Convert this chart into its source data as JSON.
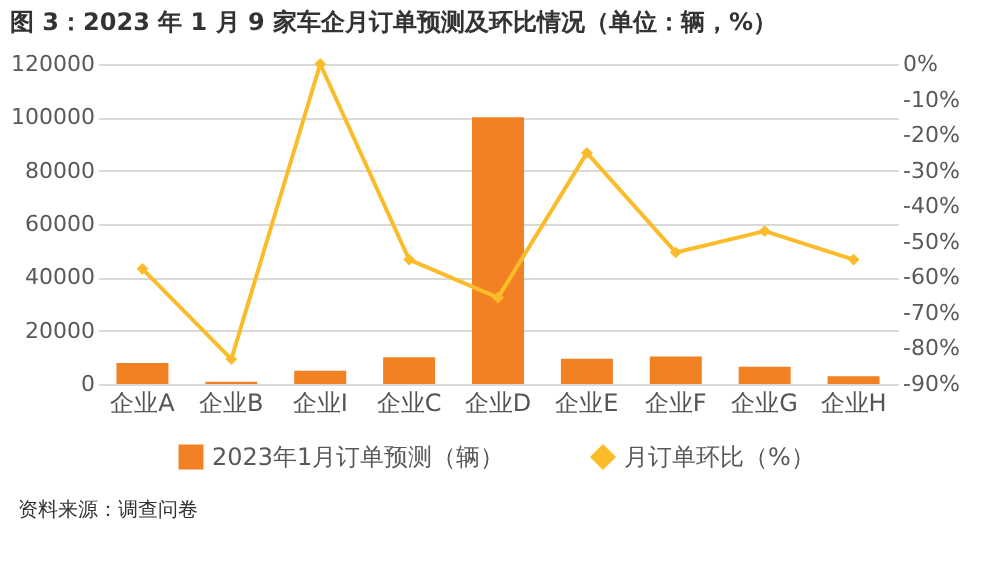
{
  "chart_data": {
    "type": "bar",
    "title": "图 3：2023 年 1 月 9 家车企月订单预测及环比情况（单位：辆，%）",
    "categories": [
      "企业A",
      "企业B",
      "企业I",
      "企业C",
      "企业D",
      "企业E",
      "企业F",
      "企业G",
      "企业H"
    ],
    "series": [
      {
        "name": "2023年1月订单预测（辆）",
        "color": "#f28123",
        "values": [
          7900,
          800,
          5000,
          10000,
          100000,
          9500,
          10300,
          6500,
          2900
        ]
      },
      {
        "name": "月订单环比（%）",
        "type": "line",
        "axis": "y2",
        "color": "#fbbc2c",
        "marker": "diamond",
        "values": [
          -57.6,
          -83,
          0,
          -55,
          -65.7,
          -25,
          -53,
          -47,
          -55
        ]
      }
    ],
    "ylim": [
      0,
      120000
    ],
    "yticks": [
      0,
      20000,
      40000,
      60000,
      80000,
      100000,
      120000
    ],
    "y2lim": [
      -90,
      0
    ],
    "y2ticks": [
      {
        "value": -90,
        "label": "-90%"
      },
      {
        "value": -80,
        "label": "-80%"
      },
      {
        "value": -70,
        "label": "-70%"
      },
      {
        "value": -60,
        "label": "-60%"
      },
      {
        "value": -50,
        "label": "-50%"
      },
      {
        "value": -40,
        "label": "-40%"
      },
      {
        "value": -30,
        "label": "-30%"
      },
      {
        "value": -20,
        "label": "-20%"
      },
      {
        "value": -10,
        "label": "-10%"
      },
      {
        "value": 0,
        "label": "0%"
      }
    ],
    "grid": "y",
    "legend": "bottom",
    "annotations": [
      "资料来源：调查问卷"
    ]
  }
}
